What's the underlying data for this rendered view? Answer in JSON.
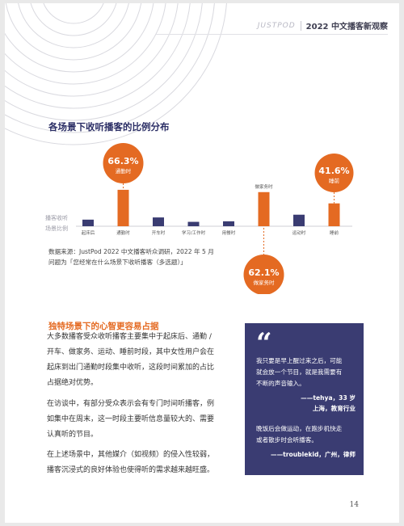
{
  "header": {
    "brand": "JUSTPOD",
    "title": "2022 中文播客新观察"
  },
  "section_title": "各场景下收听播客的比例分布",
  "chart_data": {
    "type": "bar",
    "title": "",
    "ylabel": "播客收听场景比例",
    "categories": [
      "起床后",
      "通勤时",
      "开车时",
      "学习/工作时",
      "用餐时",
      "做家务时",
      "运动时",
      "睡前"
    ],
    "values": [
      12,
      66.3,
      16,
      8,
      9,
      62.1,
      21,
      41.6
    ],
    "ylim": [
      0,
      100
    ],
    "grid": false,
    "callouts": [
      {
        "value": "66.3%",
        "label": "通勤时"
      },
      {
        "value": "62.1%",
        "label": "做家务时"
      },
      {
        "value": "41.6%",
        "label": "睡前"
      }
    ],
    "colors": {
      "highlight": "#e46a22",
      "normal": "#3a3c72"
    }
  },
  "source": {
    "line1": "数据来源：JustPod 2022 中文播客听众调研，2022 年 5 月",
    "line2": "问题为「您经常在什么场景下收听播客（多选题）」"
  },
  "subsection_title": "独特场景下的心智更容易占据",
  "paragraphs": [
    [
      "大多数播客受众收听播客主要集中于起床后、通勤 /",
      "开车、做家务、运动、睡前时段，其中女性用户会在",
      "起床到出门通勤时段集中收听，这段时间累加的占比",
      "占据绝对优势。"
    ],
    [
      "在访谈中，有部分受众表示会有专门时间听播客，例",
      "如集中在周末，这一时段主要听信息量较大的、需要",
      "认真听的节目。"
    ],
    [
      "在上述场景中，其他媒介（如视频）的侵入性较弱，",
      "播客沉浸式的良好体验也使得听的需求越来越旺盛。"
    ]
  ],
  "quote": {
    "mark": "“",
    "text1": [
      "我只要是早上醒过来之后，可能",
      "就会放一个节目，就是我需要有",
      "不断的声音输入。"
    ],
    "author1_line1": "——tehya，33 岁",
    "author1_line2": "上海，教育行业",
    "text2": [
      "晚饭后会做运动，在跑步机快走",
      "或者散步时会听播客。"
    ],
    "author2": "——troublekid，广州，律师"
  },
  "page_number": "14"
}
